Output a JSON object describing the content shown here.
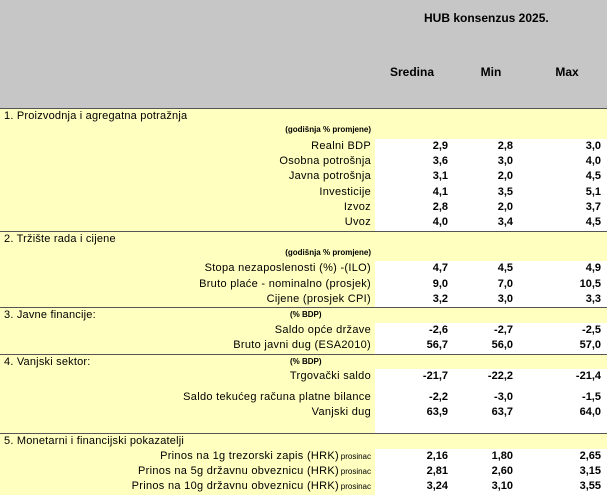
{
  "header": {
    "title": "HUB konsenzus 2025.",
    "col_sredina": "Sredina",
    "col_min": "Min",
    "col_max": "Max"
  },
  "sections": {
    "s1": {
      "label": "1. Proizvodnja i agregatna potražnja",
      "unit": "(godišnja % promjene)"
    },
    "s2": {
      "label": "2. Tržište rada i cijene",
      "unit": "(godišnja % promjene)"
    },
    "s3": {
      "label": "3. Javne financije:",
      "unit": "(% BDP)"
    },
    "s4": {
      "label": "4. Vanjski sektor:",
      "unit": "(% BDP)"
    },
    "s5": {
      "label": "5. Monetarni i financijski pokazatelji"
    }
  },
  "rows": {
    "r1": {
      "label": "Realni BDP",
      "sredina": "2,9",
      "min": "2,8",
      "max": "3,0"
    },
    "r2": {
      "label": "Osobna potrošnja",
      "sredina": "3,6",
      "min": "3,0",
      "max": "4,0"
    },
    "r3": {
      "label": "Javna potrošnja",
      "sredina": "3,1",
      "min": "2,0",
      "max": "4,5"
    },
    "r4": {
      "label": "Investicije",
      "sredina": "4,1",
      "min": "3,5",
      "max": "5,1"
    },
    "r5": {
      "label": "Izvoz",
      "sredina": "2,8",
      "min": "2,0",
      "max": "3,7"
    },
    "r6": {
      "label": "Uvoz",
      "sredina": "4,0",
      "min": "3,4",
      "max": "4,5"
    },
    "r7": {
      "label": "Stopa nezaposlenosti (%) -(ILO)",
      "sredina": "4,7",
      "min": "4,5",
      "max": "4,9"
    },
    "r8": {
      "label": "Bruto plaće - nominalno (prosjek)",
      "sredina": "9,0",
      "min": "7,0",
      "max": "10,5"
    },
    "r9": {
      "label": "Cijene (prosjek CPI)",
      "sredina": "3,2",
      "min": "3,0",
      "max": "3,3"
    },
    "r10": {
      "label": "Saldo opće države",
      "sredina": "-2,6",
      "min": "-2,7",
      "max": "-2,5"
    },
    "r11": {
      "label": "Bruto javni dug (ESA2010)",
      "sredina": "56,7",
      "min": "56,0",
      "max": "57,0"
    },
    "r12": {
      "label": "Trgovački saldo",
      "sredina": "-21,7",
      "min": "-22,2",
      "max": "-21,4"
    },
    "r13": {
      "label": "Saldo tekućeg računa platne bilance",
      "sredina": "-2,2",
      "min": "-3,0",
      "max": "-1,5"
    },
    "r14": {
      "label": "Vanjski dug",
      "sredina": "63,9",
      "min": "63,7",
      "max": "64,0"
    },
    "r15": {
      "label": "Prinos na 1g trezorski zapis (HRK)",
      "note": "prosinac",
      "sredina": "2,16",
      "min": "1,80",
      "max": "2,65"
    },
    "r16": {
      "label": "Prinos na 5g državnu obveznicu (HRK)",
      "note": "prosinac",
      "sredina": "2,81",
      "min": "2,60",
      "max": "3,15"
    },
    "r17": {
      "label": "Prinos na 10g državnu obveznicu (HRK)",
      "note": "prosinac",
      "sredina": "3,24",
      "min": "3,10",
      "max": "3,55"
    }
  }
}
